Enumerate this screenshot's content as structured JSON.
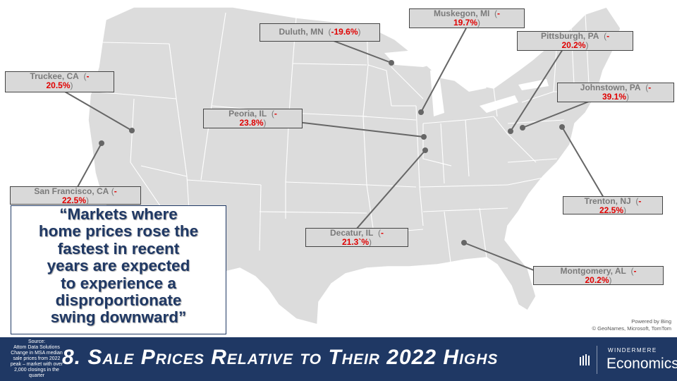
{
  "map": {
    "attribution_line1": "Powered by Bing",
    "attribution_line2": "© GeoNames, Microsoft, TomTom"
  },
  "labels": [
    {
      "id": "truckee",
      "city": "Truckee, CA",
      "value": "20.5%"
    },
    {
      "id": "duluth",
      "city": "Duluth, MN",
      "value": "-19.6%"
    },
    {
      "id": "muskegon",
      "city": "Muskegon, MI",
      "value": "19.7%"
    },
    {
      "id": "pittsburgh",
      "city": "Pittsburgh, PA",
      "value": "20.2%"
    },
    {
      "id": "johnstown",
      "city": "Johnstown, PA",
      "value": "39.1%"
    },
    {
      "id": "peoria",
      "city": "Peoria, IL",
      "value": "23.8%"
    },
    {
      "id": "san-francisco",
      "city": "San Francisco, CA",
      "value": "22.5%"
    },
    {
      "id": "trenton",
      "city": "Trenton, NJ",
      "value": "22.5%"
    },
    {
      "id": "decatur",
      "city": "Decatur, IL",
      "value": "21.3`%"
    },
    {
      "id": "montgomery",
      "city": "Montgomery, AL",
      "value": "20.2%"
    }
  ],
  "quote": {
    "lines": [
      "“Markets where",
      "home prices rose the",
      "fastest in recent",
      "years are expected",
      "to experience a",
      "disproportionate",
      "swing downward”"
    ]
  },
  "footer": {
    "source_lines": [
      "Source:",
      "Attom Data Solutions",
      "Change in MSA median",
      "sale prices from 2022",
      "peak – market with over",
      "2,000 closings in the",
      "quarter"
    ],
    "title": "8. Sale Prices Relative to Their 2022 Highs",
    "brand_top": "WINDERMERE",
    "brand_main": "Economics"
  },
  "colors": {
    "navy": "#1f3864",
    "negative_value": "#e00000",
    "land": "#dcdcdc",
    "label_fill": "#d9d9d9"
  }
}
